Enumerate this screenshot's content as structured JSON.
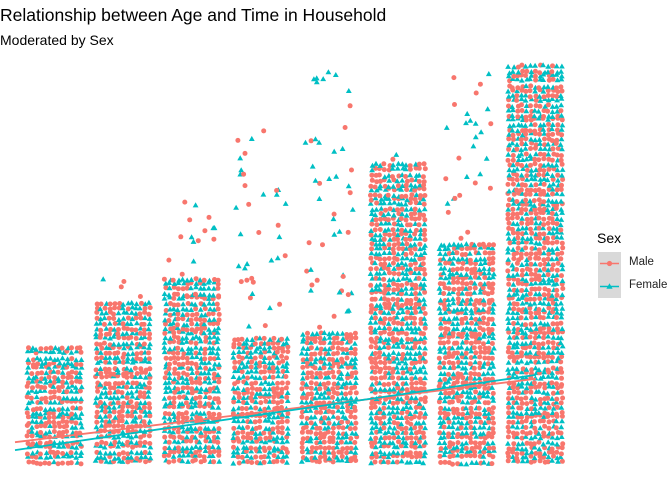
{
  "chart_data": {
    "type": "scatter",
    "title": "Relationship between Age and Time in Household",
    "subtitle": "Moderated by Sex",
    "xlabel": "",
    "ylabel": "",
    "grid": false,
    "legend": {
      "title": "Sex",
      "placement": "right"
    },
    "x_categories": 8,
    "y_range": [
      0,
      1
    ],
    "columns": [
      {
        "max_dense": 0.29,
        "max_outlier": 0.29
      },
      {
        "max_dense": 0.41,
        "max_outlier": 0.47
      },
      {
        "max_dense": 0.47,
        "max_outlier": 0.69
      },
      {
        "max_dense": 0.32,
        "max_outlier": 0.84
      },
      {
        "max_dense": 0.33,
        "max_outlier": 1.0
      },
      {
        "max_dense": 0.75,
        "max_outlier": 0.78
      },
      {
        "max_dense": 0.56,
        "max_outlier": 0.98
      },
      {
        "max_dense": 1.0,
        "max_outlier": 1.0
      }
    ],
    "series": [
      {
        "name": "Male",
        "color": "#F8766D",
        "marker": "circle",
        "trend": [
          [
            1,
            0.05
          ],
          [
            8,
            0.21
          ]
        ]
      },
      {
        "name": "Female",
        "color": "#00BFC4",
        "marker": "triangle",
        "trend": [
          [
            1,
            0.03
          ],
          [
            8,
            0.22
          ]
        ]
      }
    ]
  }
}
